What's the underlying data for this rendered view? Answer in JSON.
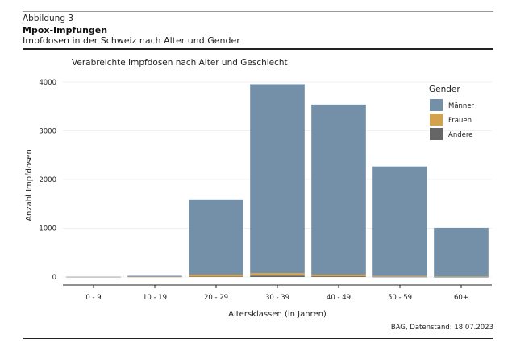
{
  "figure": {
    "label": "Abbildung 3",
    "title": "Mpox-Impfungen",
    "subtitle": "Impfdosen in der Schweiz nach Alter und Gender",
    "source": "BAG, Datenstand: 18.07.2023"
  },
  "chart_data": {
    "type": "bar",
    "stacked": true,
    "title": "Verabreichte Impfdosen nach Alter und Geschlecht",
    "xlabel": "Altersklassen (in Jahren)",
    "ylabel": "Anzahl Impfdosen",
    "ylim": [
      0,
      4100
    ],
    "yticks": [
      0,
      1000,
      2000,
      3000,
      4000
    ],
    "categories": [
      "0 - 9",
      "10 - 19",
      "20 - 29",
      "30 - 39",
      "40 - 49",
      "50 - 59",
      "60+"
    ],
    "legend": {
      "title": "Gender",
      "position": "top-right"
    },
    "series": [
      {
        "name": "Andere",
        "color": "#666666",
        "values": [
          0,
          0,
          10,
          30,
          15,
          5,
          2
        ]
      },
      {
        "name": "Frauen",
        "color": "#d4a24c",
        "values": [
          2,
          5,
          40,
          50,
          35,
          15,
          8
        ]
      },
      {
        "name": "Männer",
        "color": "#7390a8",
        "values": [
          3,
          20,
          1540,
          3880,
          3490,
          2250,
          1000
        ]
      }
    ],
    "legend_order": [
      "Männer",
      "Frauen",
      "Andere"
    ]
  }
}
